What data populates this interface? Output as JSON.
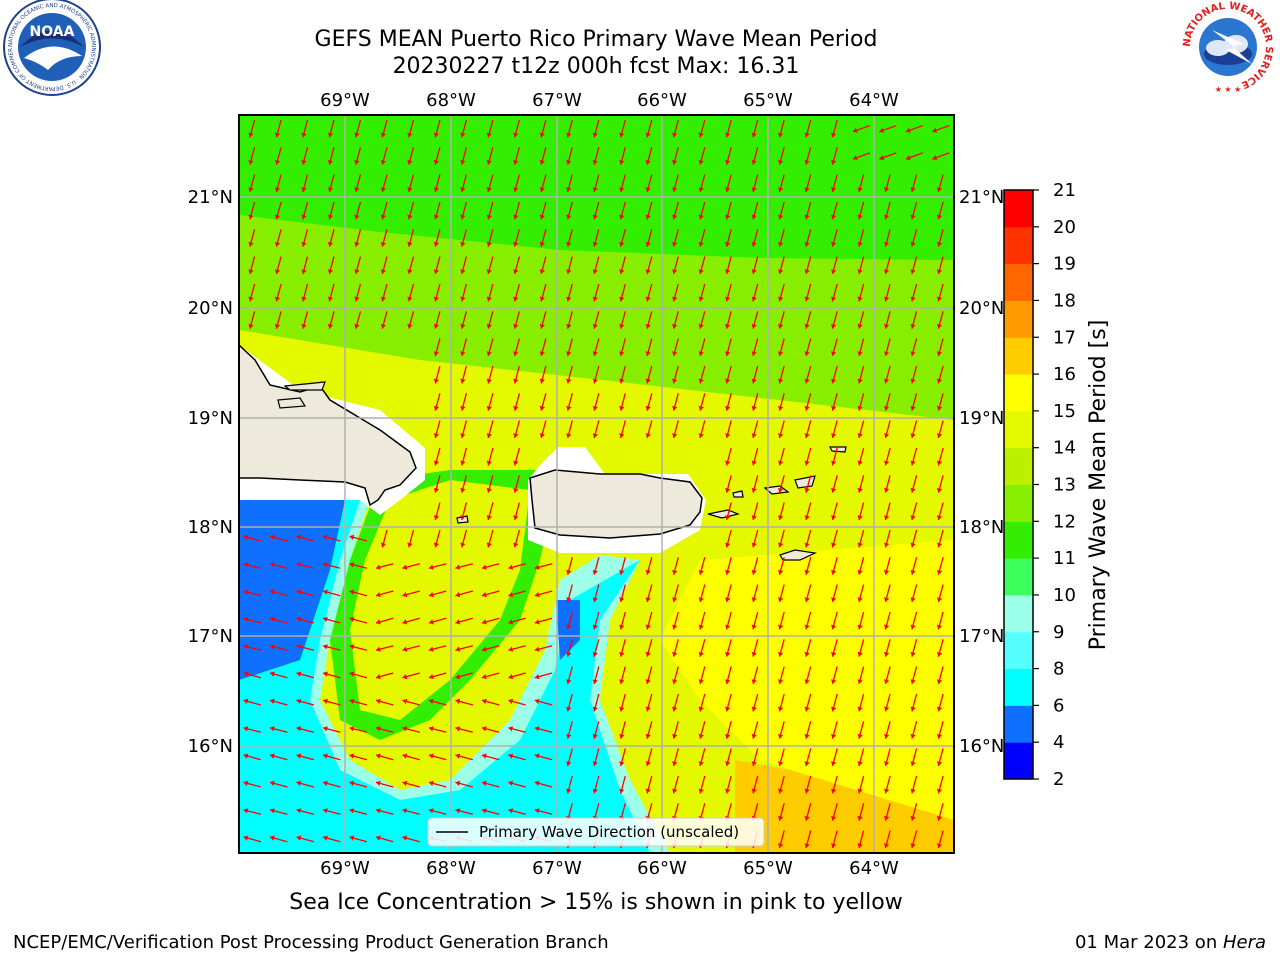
{
  "header": {
    "title_line1": "GEFS MEAN Puerto Rico Primary Wave Mean Period",
    "title_line2": "20230227 t12z 000h fcst   Max: 16.31"
  },
  "map": {
    "lon_labels": [
      "69°W",
      "68°W",
      "67°W",
      "66°W",
      "65°W",
      "64°W"
    ],
    "lat_labels": [
      "21°N",
      "20°N",
      "19°N",
      "18°N",
      "17°N",
      "16°N"
    ],
    "legend_label": "Primary Wave Direction (unscaled)",
    "arrow_color": "#ff0000",
    "land_color": "#eeeadb"
  },
  "colorbar": {
    "label": "Primary Wave Mean Period [s]",
    "ticks": [
      "2",
      "4",
      "6",
      "8",
      "9",
      "10",
      "11",
      "12",
      "13",
      "14",
      "15",
      "16",
      "17",
      "18",
      "19",
      "20",
      "21"
    ],
    "colors": [
      "#0000ff",
      "#0f6fff",
      "#00ffff",
      "#55ffff",
      "#9cffe8",
      "#3dff5e",
      "#33ee00",
      "#88ee00",
      "#bbf000",
      "#e4f800",
      "#ffff00",
      "#ffcc00",
      "#ff9900",
      "#ff6600",
      "#ff3300",
      "#ff0000"
    ]
  },
  "notes": {
    "sea_ice": "Sea Ice Concentration > 15% is shown in pink to yellow"
  },
  "footer": {
    "left": "NCEP/EMC/Verification Post Processing Product Generation Branch",
    "right_prefix": "01 Mar 2023 on ",
    "right_host": "Hera"
  },
  "logos": {
    "noaa_text": "NOAA",
    "noaa_ring": "NATIONAL OCEANIC AND ATMOSPHERIC ADMINISTRATION · U.S. DEPARTMENT OF COMMERCE",
    "nws_ring": "NATIONAL WEATHER SERVICE"
  }
}
